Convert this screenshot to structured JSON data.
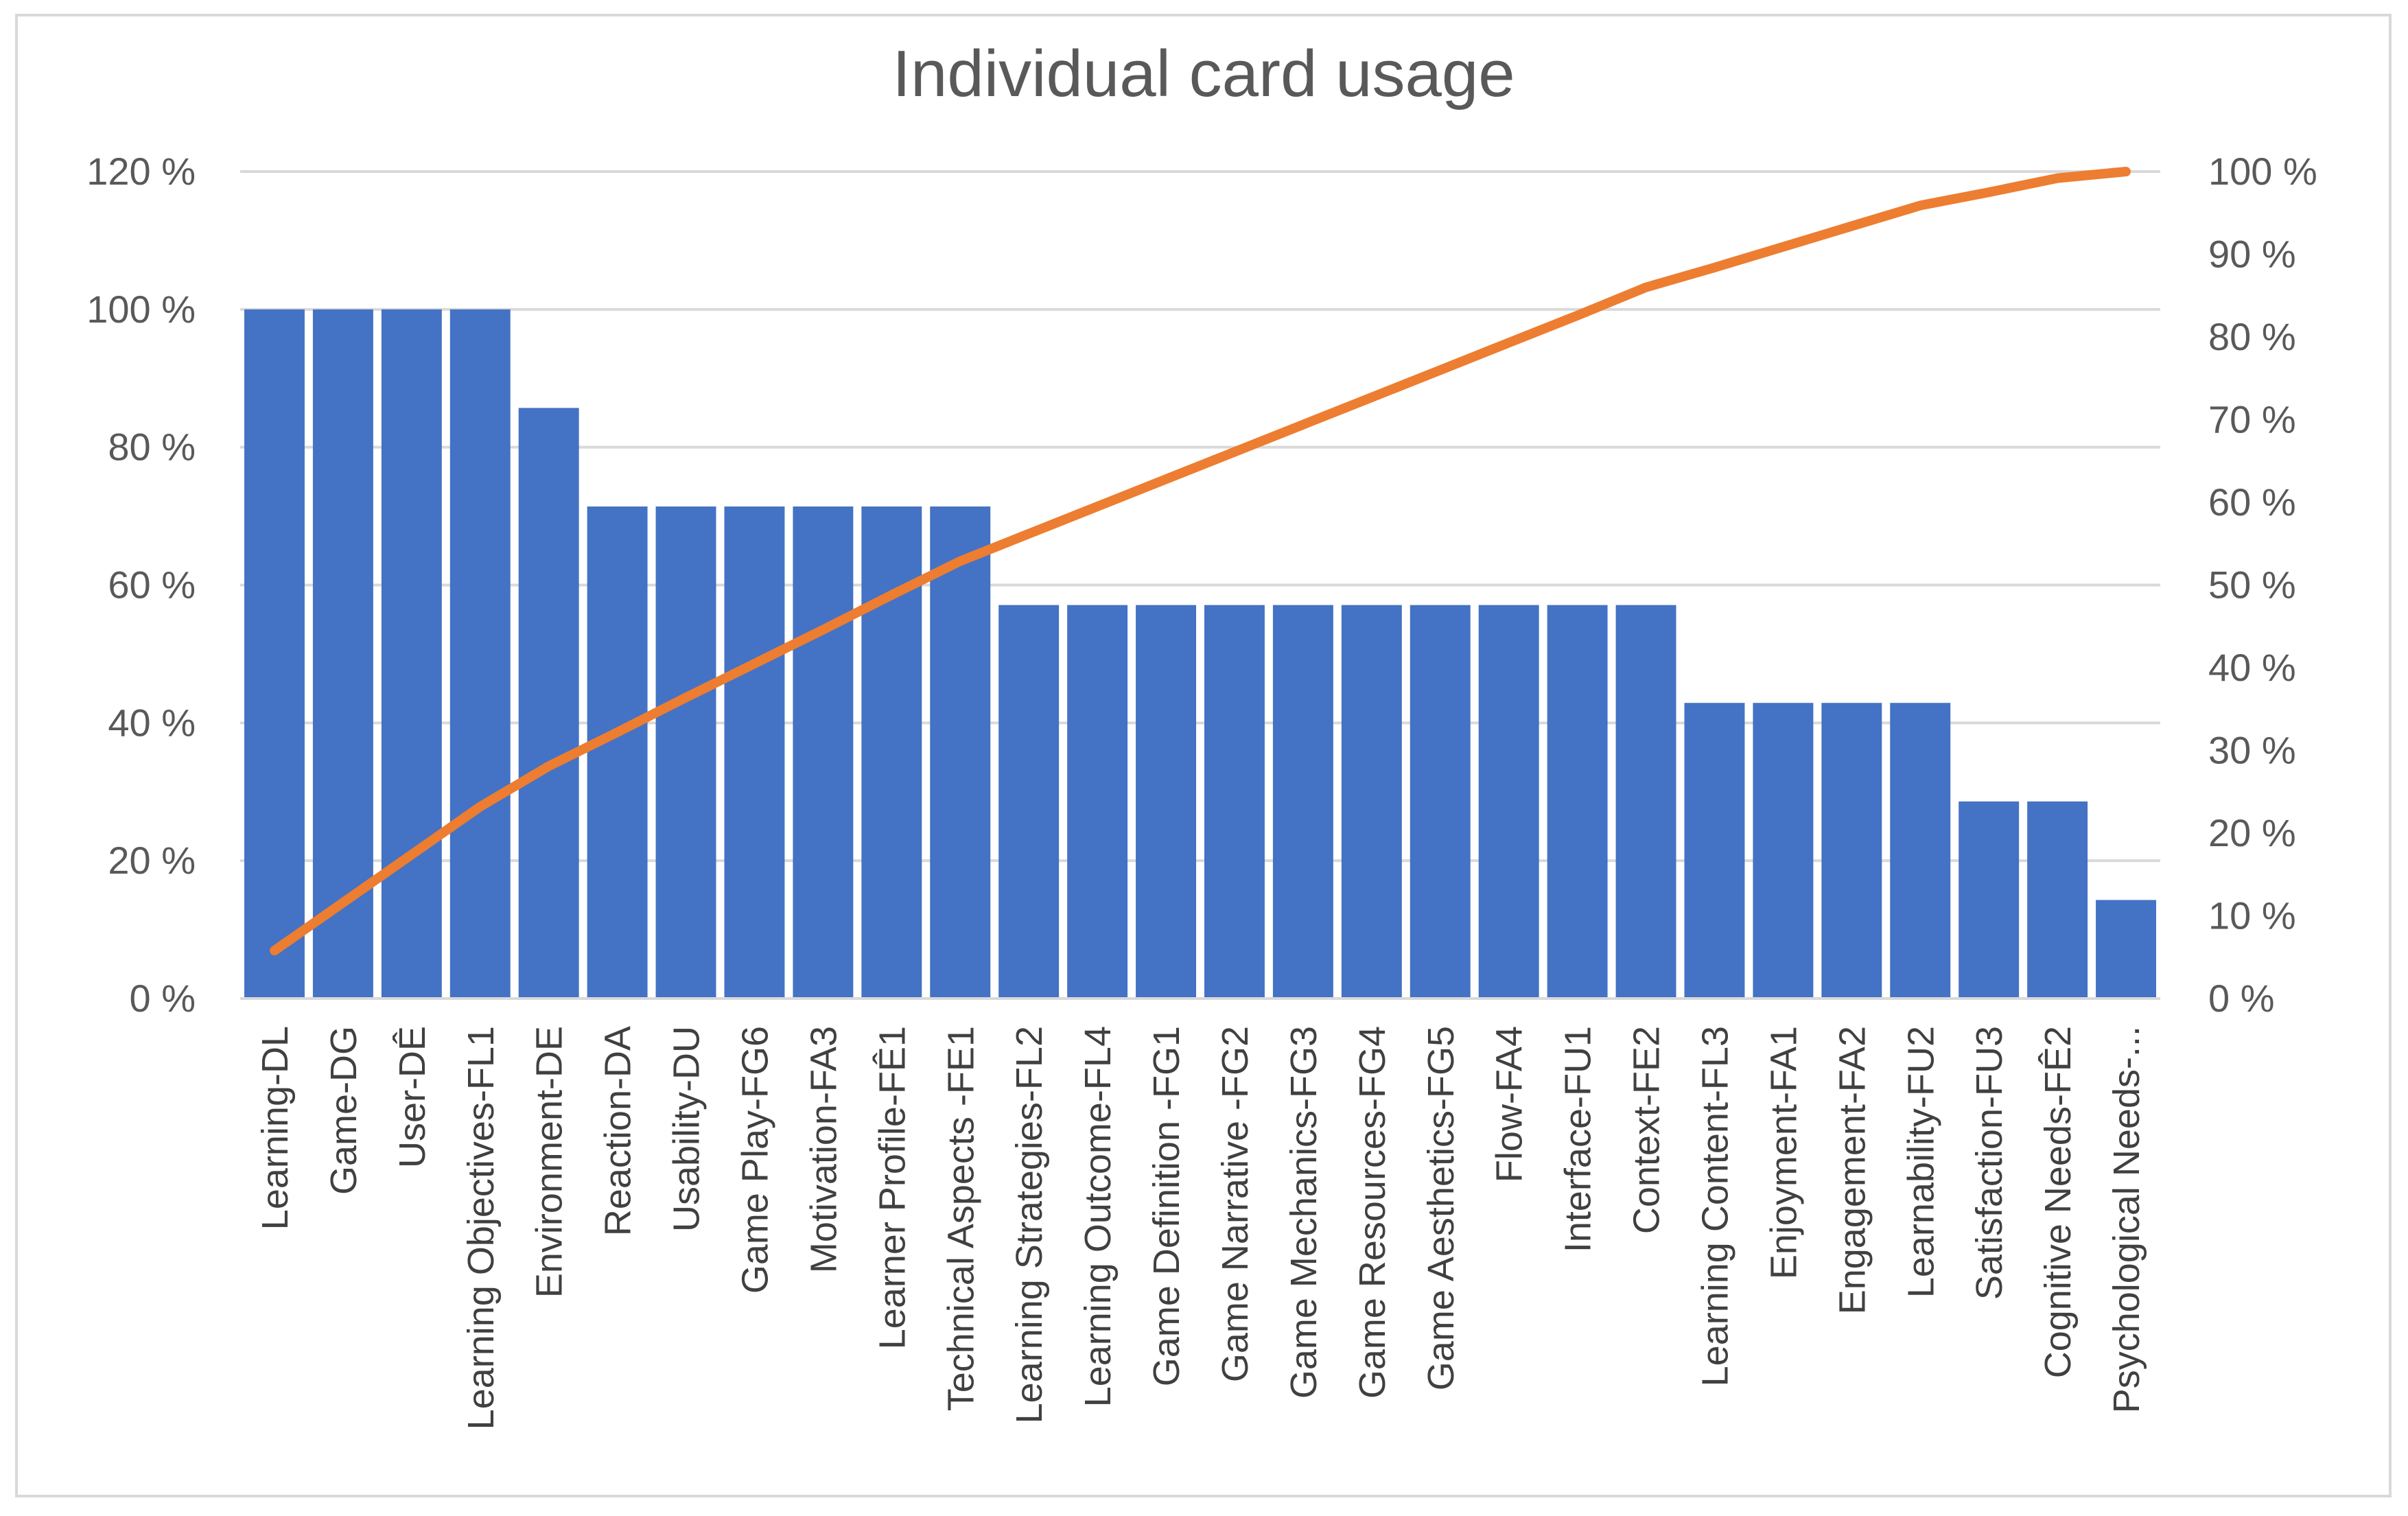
{
  "chart_data": {
    "type": "bar",
    "title": "Individual card usage",
    "categories": [
      "Learning-DL",
      "Game-DG",
      "User-DÊ",
      "Learning Objectives-FL1",
      "Environment-DE",
      "Reaction-DA",
      "Usability-DU",
      "Game Play-FG6",
      "Motivation-FA3",
      "Learner Profile-FÊ1",
      "Technical Aspects -FE1",
      "Learning Strategies-FL2",
      "Learning Outcome-FL4",
      "Game Definition -FG1",
      "Game Narrative -FG2",
      "Game Mechanics-FG3",
      "Game Resources-FG4",
      "Game Aesthetics-FG5",
      "Flow-FA4",
      "Interface-FU1",
      "Context-FE2",
      "Learning Content-FL3",
      "Enjoyment-FA1",
      "Engagement-FA2",
      "Learnability-FU2",
      "Satisfaction-FU3",
      "Cognitive Needs-FÊ2",
      "Psychological Needs-..."
    ],
    "series": [
      {
        "type": "bar",
        "axis": "left",
        "color": "#4472c4",
        "values": [
          100,
          100,
          100,
          100,
          85.7,
          71.4,
          71.4,
          71.4,
          71.4,
          71.4,
          71.4,
          57.1,
          57.1,
          57.1,
          57.1,
          57.1,
          57.1,
          57.1,
          57.1,
          57.1,
          57.1,
          42.9,
          42.9,
          42.9,
          42.9,
          28.6,
          28.6,
          14.3
        ]
      },
      {
        "type": "line",
        "axis": "right",
        "color": "#ed7d31",
        "values": [
          5.8,
          11.6,
          17.4,
          23.2,
          28.1,
          32.2,
          36.4,
          40.5,
          44.6,
          48.8,
          52.9,
          56.2,
          59.5,
          62.8,
          66.1,
          69.4,
          72.7,
          76.0,
          79.3,
          82.6,
          86.0,
          88.4,
          90.9,
          93.4,
          95.9,
          97.5,
          99.2,
          100
        ]
      }
    ],
    "y_left": {
      "min": 0,
      "max": 120,
      "ticks": [
        "0 %",
        "20 %",
        "40 %",
        "60 %",
        "80 %",
        "100 %",
        "120 %"
      ]
    },
    "y_right": {
      "min": 0,
      "max": 100,
      "ticks": [
        "0 %",
        "10 %",
        "20 %",
        "30 %",
        "40 %",
        "50 %",
        "60 %",
        "70 %",
        "80 %",
        "90 %",
        "100 %"
      ]
    },
    "grid": true,
    "legend": "none"
  }
}
